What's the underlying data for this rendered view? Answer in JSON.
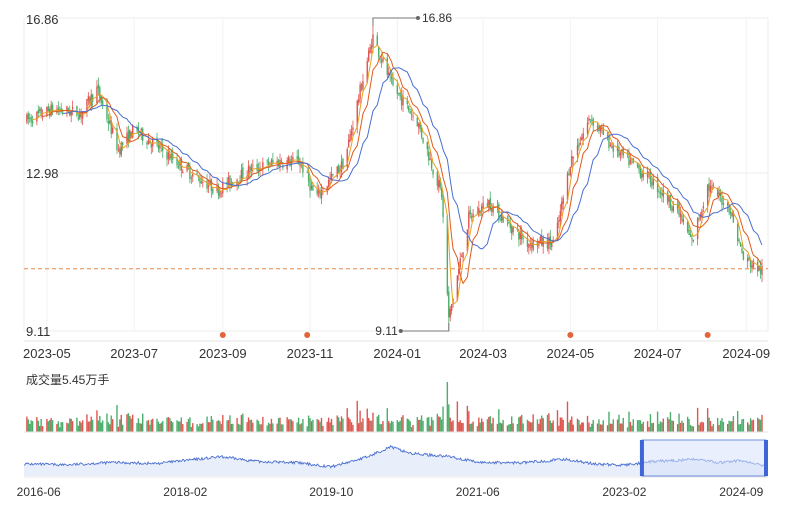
{
  "chart_data": {
    "type": "candlestick",
    "price_axis": {
      "ticks": [
        "16.86",
        "12.98",
        "9.11"
      ],
      "ylim": [
        9.11,
        16.86
      ]
    },
    "x_ticks": [
      "2023-05",
      "2023-07",
      "2023-09",
      "2023-11",
      "2024-01",
      "2024-03",
      "2024-05",
      "2024-07",
      "2024-09"
    ],
    "annotations": {
      "high": "16.86",
      "low": "9.11"
    },
    "reference_line": 10.65,
    "moving_averages": [
      {
        "color": "#e8a020"
      },
      {
        "color": "#e05a20"
      },
      {
        "color": "#4a6fd0"
      }
    ],
    "price_keypoints": [
      [
        "2023-04-15",
        14.3
      ],
      [
        "2023-05-05",
        14.6
      ],
      [
        "2023-05-25",
        14.5
      ],
      [
        "2023-06-05",
        15.1
      ],
      [
        "2023-06-20",
        13.6
      ],
      [
        "2023-07-01",
        14.1
      ],
      [
        "2023-07-20",
        13.6
      ],
      [
        "2023-08-10",
        13.0
      ],
      [
        "2023-08-28",
        12.6
      ],
      [
        "2023-09-20",
        13.1
      ],
      [
        "2023-10-10",
        13.3
      ],
      [
        "2023-10-25",
        13.3
      ],
      [
        "2023-11-05",
        12.4
      ],
      [
        "2023-11-25",
        13.3
      ],
      [
        "2023-12-05",
        14.9
      ],
      [
        "2023-12-15",
        16.4
      ],
      [
        "2023-12-28",
        15.2
      ],
      [
        "2024-01-15",
        14.3
      ],
      [
        "2024-02-01",
        12.5
      ],
      [
        "2024-02-06",
        9.4
      ],
      [
        "2024-02-20",
        11.9
      ],
      [
        "2024-03-05",
        12.3
      ],
      [
        "2024-03-20",
        11.7
      ],
      [
        "2024-04-01",
        11.3
      ],
      [
        "2024-04-20",
        11.3
      ],
      [
        "2024-05-01",
        13.3
      ],
      [
        "2024-05-15",
        14.4
      ],
      [
        "2024-06-01",
        13.6
      ],
      [
        "2024-06-25",
        12.9
      ],
      [
        "2024-07-15",
        12.1
      ],
      [
        "2024-07-25",
        11.3
      ],
      [
        "2024-08-05",
        12.7
      ],
      [
        "2024-08-20",
        12.2
      ],
      [
        "2024-08-30",
        10.9
      ],
      [
        "2024-09-12",
        10.6
      ]
    ],
    "date_range": [
      "2023-04-15",
      "2024-09-12"
    ],
    "event_markers": [
      "2023-09-01",
      "2023-10-30",
      "2024-05-01",
      "2024-08-05"
    ],
    "volume": {
      "label": "成交量5.45万手",
      "up_color": "#e05550",
      "down_color": "#4bae6c"
    },
    "navigator": {
      "x_ticks": [
        "2016-06",
        "2018-02",
        "2019-10",
        "2021-06",
        "2023-02",
        "2024-09"
      ],
      "date_range": [
        "2016-04-01",
        "2024-09-12"
      ],
      "selected_range": [
        "2023-04-15",
        "2024-09-12"
      ],
      "keypoints": [
        [
          "2016-04-01",
          12.0
        ],
        [
          "2016-10-01",
          11.8
        ],
        [
          "2017-04-01",
          12.4
        ],
        [
          "2017-10-01",
          12.1
        ],
        [
          "2018-02-01",
          12.9
        ],
        [
          "2018-07-01",
          13.8
        ],
        [
          "2018-12-01",
          12.6
        ],
        [
          "2019-05-01",
          12.4
        ],
        [
          "2019-10-01",
          11.3
        ],
        [
          "2020-03-01",
          13.8
        ],
        [
          "2020-06-01",
          16.3
        ],
        [
          "2020-09-01",
          14.6
        ],
        [
          "2021-02-01",
          13.9
        ],
        [
          "2021-06-01",
          12.4
        ],
        [
          "2021-12-01",
          12.3
        ],
        [
          "2022-06-01",
          13.2
        ],
        [
          "2022-10-01",
          12.0
        ],
        [
          "2023-02-01",
          11.7
        ],
        [
          "2023-06-01",
          12.6
        ],
        [
          "2023-12-01",
          13.2
        ],
        [
          "2024-03-01",
          12.3
        ],
        [
          "2024-06-01",
          12.9
        ],
        [
          "2024-09-12",
          11.3
        ]
      ]
    }
  }
}
